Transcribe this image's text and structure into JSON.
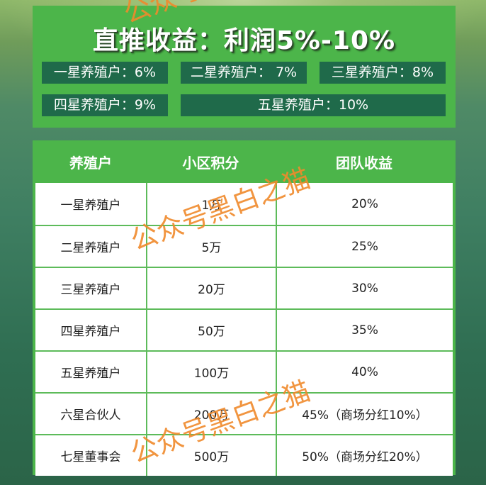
{
  "header": {
    "title": "直推收益：利润5%-10%",
    "levels": [
      "一星养殖户：6%",
      "二星养殖户： 7%",
      "三星养殖户：8%",
      "四星养殖户：9%",
      "五星养殖户：10%"
    ]
  },
  "table": {
    "columns": [
      "养殖户",
      "小区积分",
      "团队收益"
    ],
    "rows": [
      [
        "一星养殖户",
        "1万",
        "20%"
      ],
      [
        "二星养殖户",
        "5万",
        "25%"
      ],
      [
        "三星养殖户",
        "20万",
        "30%"
      ],
      [
        "四星养殖户",
        "50万",
        "35%"
      ],
      [
        "五星养殖户",
        "100万",
        "40%"
      ],
      [
        "六星合伙人",
        "200万",
        "45%（商场分红10%）"
      ],
      [
        "七星董事会",
        "500万",
        "50%（商场分红20%）"
      ]
    ]
  },
  "watermark": "公众号黑白之猫",
  "colors": {
    "panel": "#4cb54a",
    "chip": "#1f6a4a",
    "watermark": "#f08a2c"
  }
}
